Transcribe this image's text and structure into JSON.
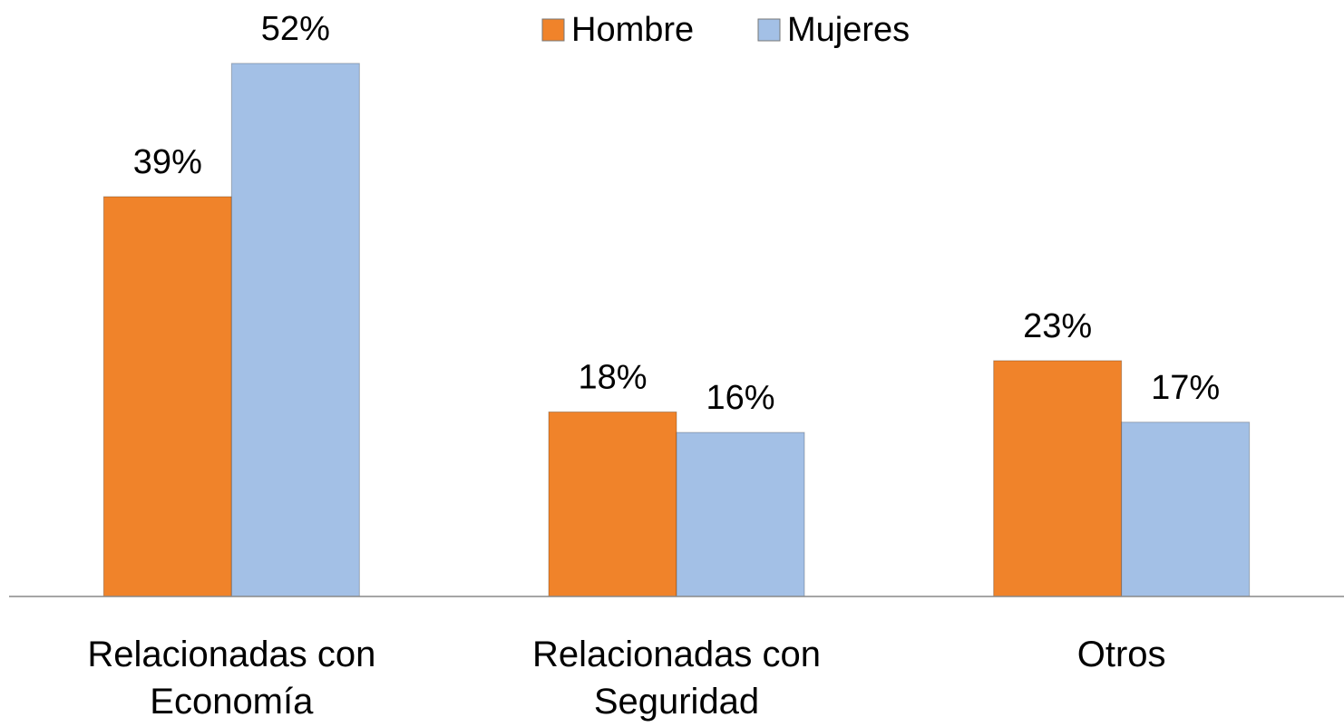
{
  "chart_data": {
    "type": "bar",
    "categories": [
      "Relacionadas con Economía",
      "Relacionadas con Seguridad",
      "Otros"
    ],
    "series": [
      {
        "name": "Hombre",
        "color": "#f0832a",
        "values": [
          39,
          18,
          23
        ],
        "value_labels": [
          "39%",
          "18%",
          "23%"
        ]
      },
      {
        "name": "Mujeres",
        "color": "#a3c0e6",
        "values": [
          52,
          16,
          17
        ],
        "value_labels": [
          "52%",
          "16%",
          "17%"
        ]
      }
    ],
    "ylim": [
      0,
      55
    ],
    "legend": "top"
  }
}
